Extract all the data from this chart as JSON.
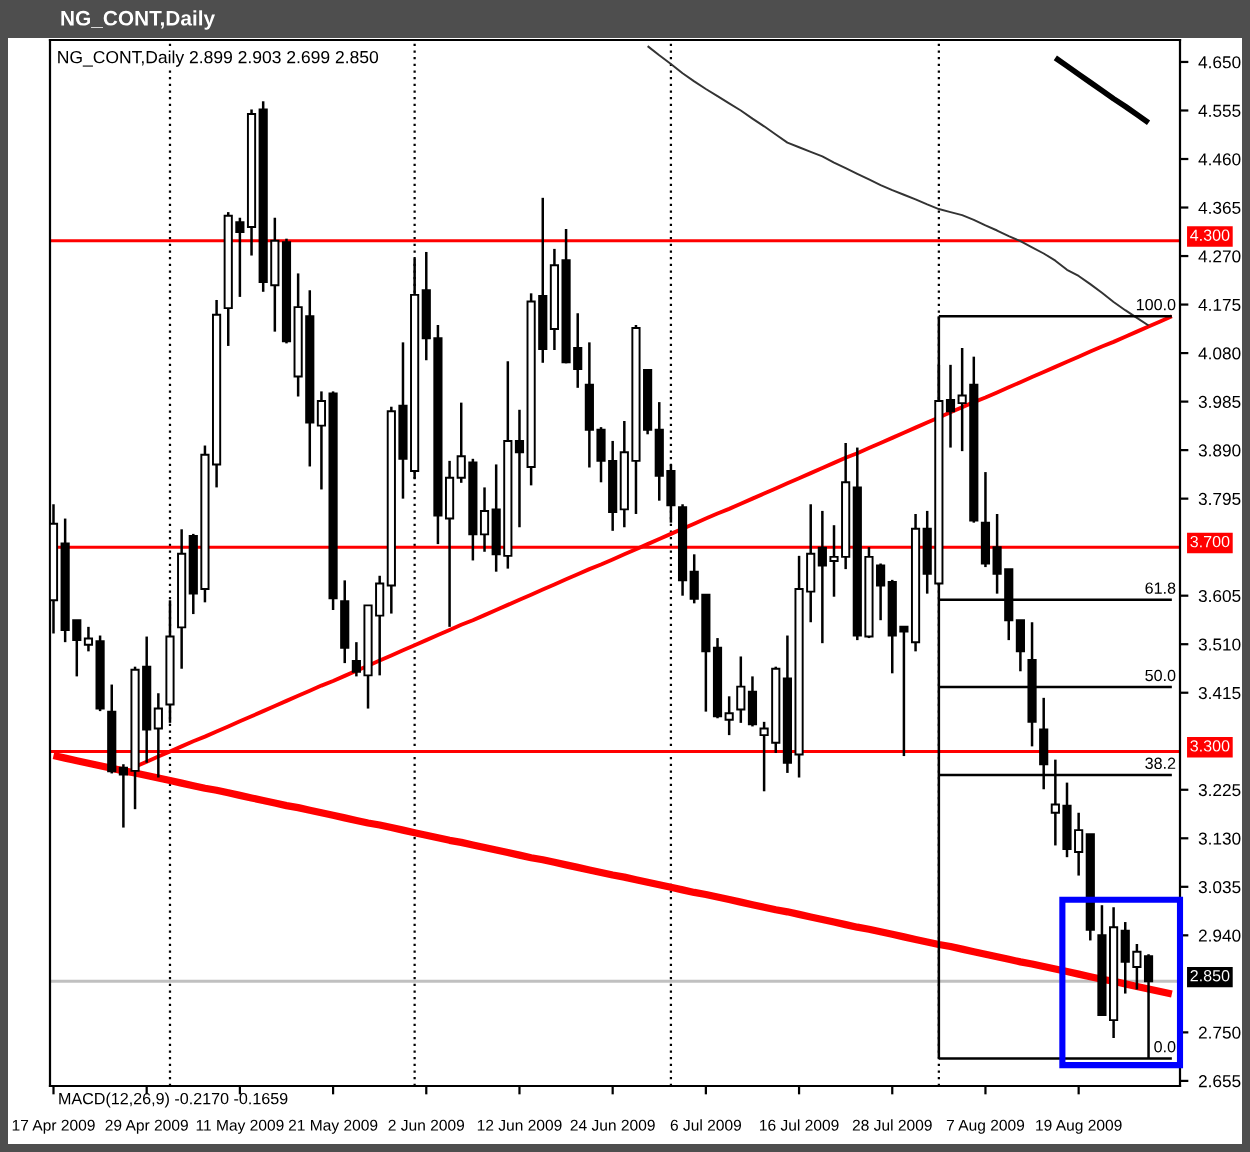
{
  "chart_data": {
    "type": "candlestick",
    "title": "NG_CONT,Daily",
    "subtitle": "NG_CONT,Daily 2.899 2.903 2.699 2.850",
    "annotations": [
      "MACD(12,26,9) -0.2170 -0.1659"
    ],
    "legend": "right",
    "categories": [
      "17 Apr 2009",
      null,
      null,
      null,
      null,
      null,
      null,
      null,
      "29 Apr 2009",
      null,
      null,
      null,
      null,
      null,
      null,
      null,
      "11 May 2009",
      null,
      null,
      null,
      null,
      null,
      null,
      null,
      "21 May 2009",
      null,
      null,
      null,
      null,
      null,
      null,
      null,
      "2 Jun 2009",
      null,
      null,
      null,
      null,
      null,
      null,
      null,
      "12 Jun 2009",
      null,
      null,
      null,
      null,
      null,
      null,
      null,
      "24 Jun 2009",
      null,
      null,
      null,
      null,
      null,
      null,
      null,
      "6 Jul 2009",
      null,
      null,
      null,
      null,
      null,
      null,
      null,
      "16 Jul 2009",
      null,
      null,
      null,
      null,
      null,
      null,
      null,
      "28 Jul 2009",
      null,
      null,
      null,
      null,
      null,
      null,
      null,
      "7 Aug 2009",
      null,
      null,
      null,
      null,
      null,
      null,
      null,
      "19 Aug 2009",
      null,
      null,
      null,
      null,
      null,
      null,
      null,
      null
    ],
    "ohlc": [
      [
        3.596,
        3.784,
        3.531,
        3.746
      ],
      [
        3.707,
        3.756,
        3.514,
        3.538
      ],
      [
        3.557,
        3.557,
        3.447,
        3.518
      ],
      [
        3.509,
        3.544,
        3.496,
        3.521
      ],
      [
        3.516,
        3.527,
        3.379,
        3.384
      ],
      [
        3.378,
        3.431,
        3.257,
        3.261
      ],
      [
        3.268,
        3.275,
        3.151,
        3.255
      ],
      [
        3.262,
        3.466,
        3.187,
        3.46
      ],
      [
        3.466,
        3.525,
        3.278,
        3.343
      ],
      [
        3.345,
        3.414,
        3.249,
        3.384
      ],
      [
        3.392,
        3.596,
        3.356,
        3.525
      ],
      [
        3.543,
        3.735,
        3.462,
        3.687
      ],
      [
        3.722,
        3.726,
        3.569,
        3.609
      ],
      [
        3.618,
        3.899,
        3.592,
        3.881
      ],
      [
        3.862,
        4.184,
        3.817,
        4.155
      ],
      [
        4.168,
        4.356,
        4.094,
        4.349
      ],
      [
        4.336,
        4.345,
        4.19,
        4.317
      ],
      [
        4.327,
        4.557,
        4.271,
        4.548
      ],
      [
        4.557,
        4.573,
        4.2,
        4.219
      ],
      [
        4.213,
        4.345,
        4.122,
        4.3
      ],
      [
        4.297,
        4.304,
        4.099,
        4.103
      ],
      [
        4.034,
        4.236,
        3.995,
        4.17
      ],
      [
        4.152,
        4.203,
        3.858,
        3.944
      ],
      [
        3.938,
        4.005,
        3.813,
        3.986
      ],
      [
        4.001,
        4.005,
        3.577,
        3.6
      ],
      [
        3.594,
        3.635,
        3.473,
        3.503
      ],
      [
        3.477,
        3.514,
        3.447,
        3.456
      ],
      [
        3.449,
        3.586,
        3.384,
        3.586
      ],
      [
        3.566,
        3.644,
        3.449,
        3.629
      ],
      [
        3.625,
        3.975,
        3.57,
        3.966
      ],
      [
        3.977,
        4.101,
        3.795,
        3.873
      ],
      [
        3.849,
        4.265,
        3.834,
        4.194
      ],
      [
        4.203,
        4.278,
        4.066,
        4.109
      ],
      [
        4.109,
        4.135,
        3.706,
        3.762
      ],
      [
        3.756,
        3.869,
        3.544,
        3.836
      ],
      [
        3.836,
        3.983,
        3.826,
        3.878
      ],
      [
        3.866,
        3.873,
        3.674,
        3.725
      ],
      [
        3.725,
        3.817,
        3.691,
        3.771
      ],
      [
        3.774,
        3.862,
        3.652,
        3.686
      ],
      [
        3.683,
        4.064,
        3.658,
        3.908
      ],
      [
        3.908,
        3.969,
        3.739,
        3.886
      ],
      [
        3.857,
        4.197,
        3.821,
        4.181
      ],
      [
        4.192,
        4.384,
        4.061,
        4.088
      ],
      [
        4.127,
        4.284,
        4.086,
        4.252
      ],
      [
        4.262,
        4.323,
        4.06,
        4.062
      ],
      [
        4.09,
        4.158,
        4.012,
        4.049
      ],
      [
        4.018,
        4.101,
        3.856,
        3.93
      ],
      [
        3.93,
        3.935,
        3.827,
        3.869
      ],
      [
        3.869,
        3.908,
        3.732,
        3.769
      ],
      [
        3.774,
        3.947,
        3.739,
        3.886
      ],
      [
        3.869,
        4.135,
        3.765,
        4.129
      ],
      [
        4.047,
        4.047,
        3.921,
        3.93
      ],
      [
        3.93,
        3.984,
        3.791,
        3.84
      ],
      [
        3.849,
        3.862,
        3.748,
        3.782
      ],
      [
        3.778,
        3.784,
        3.605,
        3.635
      ],
      [
        3.652,
        3.686,
        3.59,
        3.599
      ],
      [
        3.607,
        3.607,
        3.378,
        3.496
      ],
      [
        3.503,
        3.522,
        3.365,
        3.369
      ],
      [
        3.362,
        3.408,
        3.332,
        3.375
      ],
      [
        3.382,
        3.486,
        3.356,
        3.427
      ],
      [
        3.417,
        3.447,
        3.349,
        3.353
      ],
      [
        3.332,
        3.358,
        3.222,
        3.345
      ],
      [
        3.317,
        3.466,
        3.297,
        3.462
      ],
      [
        3.443,
        3.527,
        3.258,
        3.278
      ],
      [
        3.294,
        3.683,
        3.249,
        3.618
      ],
      [
        3.613,
        3.784,
        3.553,
        3.687
      ],
      [
        3.699,
        3.771,
        3.512,
        3.664
      ],
      [
        3.673,
        3.743,
        3.603,
        3.681
      ],
      [
        3.681,
        3.904,
        3.657,
        3.827
      ],
      [
        3.817,
        3.895,
        3.518,
        3.527
      ],
      [
        3.525,
        3.7,
        3.522,
        3.681
      ],
      [
        3.664,
        3.668,
        3.557,
        3.625
      ],
      [
        3.632,
        3.636,
        3.453,
        3.527
      ],
      [
        3.544,
        3.544,
        3.291,
        3.535
      ],
      [
        3.514,
        3.765,
        3.496,
        3.736
      ],
      [
        3.736,
        3.771,
        3.609,
        3.648
      ],
      [
        3.629,
        4.057,
        3.626,
        3.986
      ],
      [
        3.988,
        4.057,
        3.895,
        3.966
      ],
      [
        3.982,
        4.09,
        3.888,
        3.997
      ],
      [
        4.018,
        4.073,
        3.748,
        3.752
      ],
      [
        3.748,
        3.847,
        3.661,
        3.668
      ],
      [
        3.7,
        3.765,
        3.609,
        3.648
      ],
      [
        3.657,
        3.657,
        3.518,
        3.557
      ],
      [
        3.557,
        3.557,
        3.457,
        3.496
      ],
      [
        3.479,
        3.553,
        3.31,
        3.358
      ],
      [
        3.343,
        3.405,
        3.226,
        3.275
      ],
      [
        3.18,
        3.284,
        3.116,
        3.196
      ],
      [
        3.194,
        3.239,
        3.093,
        3.109
      ],
      [
        3.103,
        3.18,
        3.057,
        3.146
      ],
      [
        3.138,
        3.138,
        2.93,
        2.951
      ],
      [
        2.94,
        2.999,
        2.782,
        2.784
      ],
      [
        2.774,
        2.995,
        2.739,
        2.956
      ],
      [
        2.949,
        2.966,
        2.826,
        2.888
      ],
      [
        2.878,
        2.923,
        2.834,
        2.908
      ],
      [
        2.899,
        2.903,
        2.699,
        2.85
      ],
      null,
      null
    ],
    "ylim": [
      2.645,
      4.693
    ],
    "yticks": [
      {
        "value": 2.655,
        "label": "2.655"
      },
      {
        "value": 2.75,
        "label": "2.750"
      },
      {
        "value": 2.94,
        "label": "2.940"
      },
      {
        "value": 3.035,
        "label": "3.035"
      },
      {
        "value": 3.13,
        "label": "3.130"
      },
      {
        "value": 3.225,
        "label": "3.225"
      },
      {
        "value": 3.415,
        "label": "3.415"
      },
      {
        "value": 3.51,
        "label": "3.510"
      },
      {
        "value": 3.605,
        "label": "3.605"
      },
      {
        "value": 3.795,
        "label": "3.795"
      },
      {
        "value": 3.89,
        "label": "3.890"
      },
      {
        "value": 3.985,
        "label": "3.985"
      },
      {
        "value": 4.08,
        "label": "4.080"
      },
      {
        "value": 4.175,
        "label": "4.175"
      },
      {
        "value": 4.27,
        "label": "4.270"
      },
      {
        "value": 4.365,
        "label": "4.365"
      },
      {
        "value": 4.46,
        "label": "4.460"
      },
      {
        "value": 4.555,
        "label": "4.555"
      },
      {
        "value": 4.65,
        "label": "4.650"
      }
    ],
    "ref_lines": [
      {
        "axis": "y",
        "value": 4.3,
        "label": "4.300",
        "color": "#ff0000"
      },
      {
        "axis": "y",
        "value": 3.7,
        "label": "3.700",
        "color": "#ff0000"
      },
      {
        "axis": "y",
        "value": 3.3,
        "label": "3.300",
        "color": "#ff0000"
      },
      {
        "axis": "y",
        "value": 2.85,
        "label": "2.850",
        "color": "#c0c0c0"
      }
    ],
    "series": [
      {
        "type": "line",
        "color": "#ff0000",
        "values": [
          3.292,
          3.287,
          3.282,
          3.277,
          3.272,
          3.267,
          3.262,
          3.258,
          3.253,
          3.248,
          3.243,
          3.238,
          3.233,
          3.228,
          3.224,
          3.219,
          3.214,
          3.209,
          3.204,
          3.199,
          3.194,
          3.19,
          3.185,
          3.18,
          3.175,
          3.17,
          3.165,
          3.16,
          3.156,
          3.151,
          3.146,
          3.141,
          3.136,
          3.131,
          3.126,
          3.122,
          3.117,
          3.112,
          3.107,
          3.102,
          3.097,
          3.092,
          3.088,
          3.083,
          3.078,
          3.073,
          3.068,
          3.063,
          3.058,
          3.054,
          3.049,
          3.044,
          3.039,
          3.034,
          3.029,
          3.024,
          3.02,
          3.015,
          3.01,
          3.005,
          3.0,
          2.995,
          2.99,
          2.986,
          2.981,
          2.976,
          2.971,
          2.966,
          2.961,
          2.956,
          2.952,
          2.947,
          2.942,
          2.937,
          2.932,
          2.927,
          2.922,
          2.918,
          2.913,
          2.908,
          2.903,
          2.898,
          2.893,
          2.888,
          2.884,
          2.879,
          2.874,
          2.869,
          2.864,
          2.859,
          2.854,
          2.85,
          2.845,
          2.84,
          2.835,
          2.83,
          2.825
        ]
      },
      {
        "type": "line",
        "color": "#ff0000",
        "values": [
          null,
          null,
          null,
          null,
          null,
          null,
          null,
          3.27,
          3.28,
          3.29,
          3.3,
          3.31,
          3.32,
          3.329,
          3.339,
          3.349,
          3.359,
          3.369,
          3.379,
          3.389,
          3.399,
          3.409,
          3.419,
          3.429,
          3.438,
          3.448,
          3.458,
          3.468,
          3.478,
          3.488,
          3.498,
          3.508,
          3.518,
          3.528,
          3.538,
          3.548,
          3.557,
          3.567,
          3.577,
          3.587,
          3.597,
          3.607,
          3.617,
          3.627,
          3.637,
          3.647,
          3.657,
          3.666,
          3.676,
          3.686,
          3.696,
          3.706,
          3.716,
          3.726,
          3.736,
          3.746,
          3.756,
          3.766,
          3.775,
          3.785,
          3.795,
          3.805,
          3.815,
          3.825,
          3.835,
          3.845,
          3.855,
          3.865,
          3.875,
          3.884,
          3.894,
          3.904,
          3.914,
          3.924,
          3.934,
          3.944,
          3.954,
          3.964,
          3.974,
          3.984,
          3.993,
          4.003,
          4.013,
          4.023,
          4.033,
          4.043,
          4.053,
          4.063,
          4.073,
          4.083,
          4.093,
          4.102,
          4.112,
          4.122,
          4.132,
          4.142,
          4.152
        ]
      },
      {
        "type": "line",
        "color": "#333333",
        "values": [
          null,
          null,
          null,
          null,
          null,
          null,
          null,
          null,
          null,
          null,
          null,
          null,
          null,
          null,
          null,
          null,
          null,
          null,
          null,
          null,
          null,
          null,
          null,
          null,
          null,
          null,
          null,
          null,
          null,
          null,
          null,
          null,
          null,
          null,
          null,
          null,
          null,
          null,
          null,
          null,
          null,
          null,
          null,
          null,
          null,
          null,
          null,
          null,
          null,
          null,
          null,
          4.681,
          4.663,
          4.646,
          4.628,
          4.612,
          4.597,
          4.583,
          4.569,
          4.555,
          4.539,
          4.524,
          4.508,
          4.492,
          4.483,
          4.474,
          4.465,
          4.453,
          4.442,
          4.431,
          4.42,
          4.409,
          4.399,
          4.39,
          4.381,
          4.371,
          4.362,
          4.356,
          4.35,
          4.341,
          4.33,
          4.32,
          4.309,
          4.299,
          4.287,
          4.275,
          4.261,
          4.243,
          4.231,
          4.215,
          4.198,
          4.18,
          4.164,
          4.149,
          4.134,
          null,
          null
        ]
      },
      {
        "type": "line",
        "color": "#000000",
        "values": [
          null,
          null,
          null,
          null,
          null,
          null,
          null,
          null,
          null,
          null,
          null,
          null,
          null,
          null,
          null,
          null,
          null,
          null,
          null,
          null,
          null,
          null,
          null,
          null,
          null,
          null,
          null,
          null,
          null,
          null,
          null,
          null,
          null,
          null,
          null,
          null,
          null,
          null,
          null,
          null,
          null,
          null,
          null,
          null,
          null,
          null,
          null,
          null,
          null,
          null,
          null,
          null,
          null,
          null,
          null,
          null,
          null,
          null,
          null,
          null,
          null,
          null,
          null,
          null,
          null,
          null,
          null,
          null,
          null,
          null,
          null,
          null,
          null,
          null,
          null,
          null,
          null,
          null,
          null,
          null,
          null,
          null,
          null,
          null,
          null,
          null,
          4.658,
          4.642,
          4.626,
          4.61,
          4.594,
          4.578,
          4.563,
          4.547,
          4.531,
          null,
          null
        ]
      },
      {
        "type": "line",
        "name": "100.0",
        "color": "#000000",
        "values": [
          null,
          null,
          null,
          null,
          null,
          null,
          null,
          null,
          null,
          null,
          null,
          null,
          null,
          null,
          null,
          null,
          null,
          null,
          null,
          null,
          null,
          null,
          null,
          null,
          null,
          null,
          null,
          null,
          null,
          null,
          null,
          null,
          null,
          null,
          null,
          null,
          null,
          null,
          null,
          null,
          null,
          null,
          null,
          null,
          null,
          null,
          null,
          null,
          null,
          null,
          null,
          null,
          null,
          null,
          null,
          null,
          null,
          null,
          null,
          null,
          null,
          null,
          null,
          null,
          null,
          null,
          null,
          null,
          null,
          null,
          null,
          null,
          null,
          null,
          null,
          null,
          4.152,
          4.152,
          4.152,
          4.152,
          4.152,
          4.152,
          4.152,
          4.152,
          4.152,
          4.152,
          4.152,
          4.152,
          4.152,
          4.152,
          4.152,
          4.152,
          4.152,
          4.152,
          4.152,
          4.152,
          4.152
        ]
      },
      {
        "type": "line",
        "name": "61.8",
        "color": "#000000",
        "values": [
          null,
          null,
          null,
          null,
          null,
          null,
          null,
          null,
          null,
          null,
          null,
          null,
          null,
          null,
          null,
          null,
          null,
          null,
          null,
          null,
          null,
          null,
          null,
          null,
          null,
          null,
          null,
          null,
          null,
          null,
          null,
          null,
          null,
          null,
          null,
          null,
          null,
          null,
          null,
          null,
          null,
          null,
          null,
          null,
          null,
          null,
          null,
          null,
          null,
          null,
          null,
          null,
          null,
          null,
          null,
          null,
          null,
          null,
          null,
          null,
          null,
          null,
          null,
          null,
          null,
          null,
          null,
          null,
          null,
          null,
          null,
          null,
          null,
          null,
          null,
          null,
          3.597,
          3.597,
          3.597,
          3.597,
          3.597,
          3.597,
          3.597,
          3.597,
          3.597,
          3.597,
          3.597,
          3.597,
          3.597,
          3.597,
          3.597,
          3.597,
          3.597,
          3.597,
          3.597,
          3.597,
          3.597
        ]
      },
      {
        "type": "line",
        "name": "50.0",
        "color": "#000000",
        "values": [
          null,
          null,
          null,
          null,
          null,
          null,
          null,
          null,
          null,
          null,
          null,
          null,
          null,
          null,
          null,
          null,
          null,
          null,
          null,
          null,
          null,
          null,
          null,
          null,
          null,
          null,
          null,
          null,
          null,
          null,
          null,
          null,
          null,
          null,
          null,
          null,
          null,
          null,
          null,
          null,
          null,
          null,
          null,
          null,
          null,
          null,
          null,
          null,
          null,
          null,
          null,
          null,
          null,
          null,
          null,
          null,
          null,
          null,
          null,
          null,
          null,
          null,
          null,
          null,
          null,
          null,
          null,
          null,
          null,
          null,
          null,
          null,
          null,
          null,
          null,
          null,
          3.426,
          3.426,
          3.426,
          3.426,
          3.426,
          3.426,
          3.426,
          3.426,
          3.426,
          3.426,
          3.426,
          3.426,
          3.426,
          3.426,
          3.426,
          3.426,
          3.426,
          3.426,
          3.426,
          3.426,
          3.426
        ]
      },
      {
        "type": "line",
        "name": "38.2",
        "color": "#000000",
        "values": [
          null,
          null,
          null,
          null,
          null,
          null,
          null,
          null,
          null,
          null,
          null,
          null,
          null,
          null,
          null,
          null,
          null,
          null,
          null,
          null,
          null,
          null,
          null,
          null,
          null,
          null,
          null,
          null,
          null,
          null,
          null,
          null,
          null,
          null,
          null,
          null,
          null,
          null,
          null,
          null,
          null,
          null,
          null,
          null,
          null,
          null,
          null,
          null,
          null,
          null,
          null,
          null,
          null,
          null,
          null,
          null,
          null,
          null,
          null,
          null,
          null,
          null,
          null,
          null,
          null,
          null,
          null,
          null,
          null,
          null,
          null,
          null,
          null,
          null,
          null,
          null,
          3.254,
          3.254,
          3.254,
          3.254,
          3.254,
          3.254,
          3.254,
          3.254,
          3.254,
          3.254,
          3.254,
          3.254,
          3.254,
          3.254,
          3.254,
          3.254,
          3.254,
          3.254,
          3.254,
          3.254,
          3.254
        ]
      },
      {
        "type": "line",
        "name": "0.0",
        "color": "#000000",
        "values": [
          null,
          null,
          null,
          null,
          null,
          null,
          null,
          null,
          null,
          null,
          null,
          null,
          null,
          null,
          null,
          null,
          null,
          null,
          null,
          null,
          null,
          null,
          null,
          null,
          null,
          null,
          null,
          null,
          null,
          null,
          null,
          null,
          null,
          null,
          null,
          null,
          null,
          null,
          null,
          null,
          null,
          null,
          null,
          null,
          null,
          null,
          null,
          null,
          null,
          null,
          null,
          null,
          null,
          null,
          null,
          null,
          null,
          null,
          null,
          null,
          null,
          null,
          null,
          null,
          null,
          null,
          null,
          null,
          null,
          null,
          null,
          null,
          null,
          null,
          null,
          null,
          2.699,
          2.699,
          2.699,
          2.699,
          2.699,
          2.699,
          2.699,
          2.699,
          2.699,
          2.699,
          2.699,
          2.699,
          2.699,
          2.699,
          2.699,
          2.699,
          2.699,
          2.699,
          2.699,
          2.699,
          2.699
        ]
      }
    ]
  }
}
